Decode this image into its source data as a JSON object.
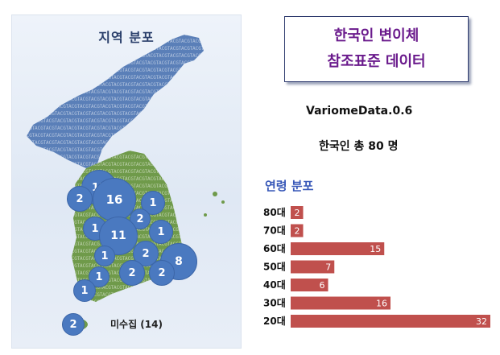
{
  "map": {
    "title": "지역 분포",
    "unknown_label": "미수집 (14)",
    "bubbles": [
      {
        "value": "13",
        "size": "large"
      },
      {
        "value": "2",
        "size": "medium"
      },
      {
        "value": "16",
        "size": "large"
      },
      {
        "value": "1",
        "size": "medium"
      },
      {
        "value": "2",
        "size": "small"
      },
      {
        "value": "1",
        "size": "medium"
      },
      {
        "value": "11",
        "size": "large"
      },
      {
        "value": "1",
        "size": "medium"
      },
      {
        "value": "1",
        "size": "small"
      },
      {
        "value": "2",
        "size": "medium"
      },
      {
        "value": "8",
        "size": "large"
      },
      {
        "value": "1",
        "size": "small"
      },
      {
        "value": "2",
        "size": "medium"
      },
      {
        "value": "2",
        "size": "medium"
      },
      {
        "value": "1",
        "size": "small"
      },
      {
        "value": "2",
        "size": "small"
      }
    ]
  },
  "header": {
    "title_line1": "한국인 변이체",
    "title_line2": "참조표준 데이터",
    "dataset": "VariomeData.0.6",
    "total": "한국인 총 80 명"
  },
  "chart_data": {
    "type": "bar",
    "title": "연령 분포",
    "categories": [
      "80대",
      "70대",
      "60대",
      "50대",
      "40대",
      "30대",
      "20대"
    ],
    "values": [
      2,
      2,
      15,
      7,
      6,
      16,
      32
    ],
    "color": "#c0504d"
  }
}
